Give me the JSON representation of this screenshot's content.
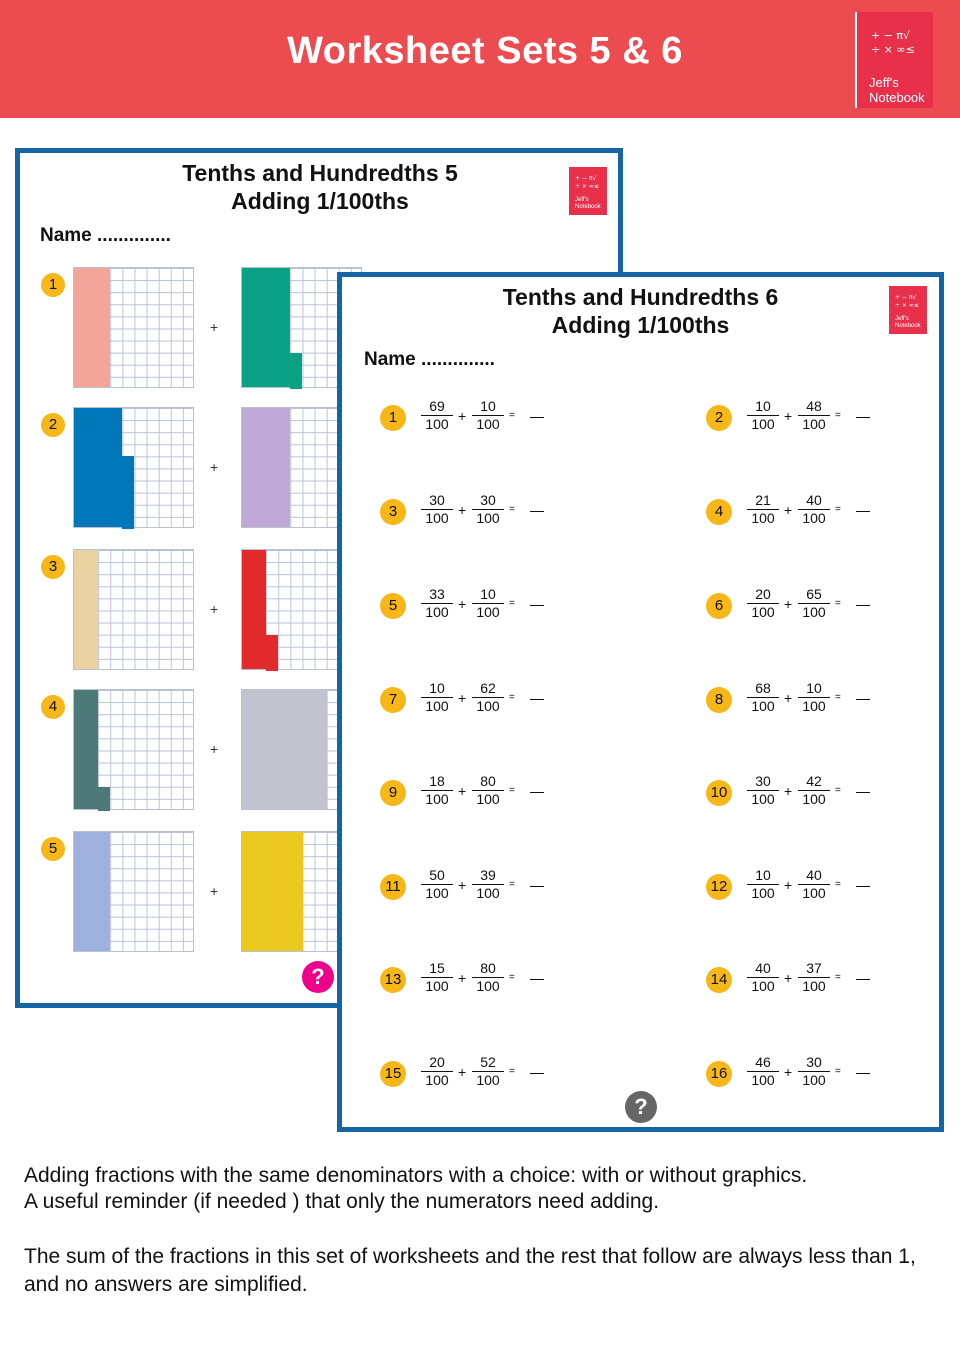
{
  "banner": {
    "title": "Worksheet Sets 5 & 6",
    "color": "#ec4b4f",
    "logo": {
      "symbols_line1": "+ −  π√",
      "symbols_line2": "÷ ×  ∞≤",
      "brand_line1": "Jeff's",
      "brand_line2": "Notebook"
    }
  },
  "sheet1": {
    "title_line1": "Tenths and Hundredths 5",
    "title_line2": "Adding 1/100ths",
    "name_label": "Name ..............",
    "plus": "+",
    "help_symbol": "?",
    "help_color": "#ec008c",
    "rows": [
      {
        "number": "1",
        "left": {
          "hundredths": 30,
          "color": "#f4a59a"
        },
        "right": {
          "hundredths": 43,
          "color": "#0aa184"
        }
      },
      {
        "number": "2",
        "left": {
          "hundredths": 46,
          "color": "#0077b8"
        },
        "right": {
          "hundredths": 40,
          "color": "#c0a8d6"
        }
      },
      {
        "number": "3",
        "left": {
          "hundredths": 20,
          "color": "#ead3a0"
        },
        "right": {
          "hundredths": 23,
          "color": "#e2292b"
        }
      },
      {
        "number": "4",
        "left": {
          "hundredths": 22,
          "color": "#4c7a78"
        },
        "right": {
          "hundredths": 70,
          "color": "#c2c3cf"
        }
      },
      {
        "number": "5",
        "left": {
          "hundredths": 30,
          "color": "#9eb0dc"
        },
        "right": {
          "hundredths": 50,
          "color": "#ebc81f"
        }
      }
    ]
  },
  "sheet2": {
    "title_line1": "Tenths and Hundredths 6",
    "title_line2": "Adding 1/100ths",
    "name_label": "Name ..............",
    "plus": "+",
    "equals": "=",
    "help_symbol": "?",
    "help_color": "#666666",
    "problems": [
      {
        "number": "1",
        "a": "69",
        "b": "10",
        "den": "100"
      },
      {
        "number": "2",
        "a": "10",
        "b": "48",
        "den": "100"
      },
      {
        "number": "3",
        "a": "30",
        "b": "30",
        "den": "100"
      },
      {
        "number": "4",
        "a": "21",
        "b": "40",
        "den": "100"
      },
      {
        "number": "5",
        "a": "33",
        "b": "10",
        "den": "100"
      },
      {
        "number": "6",
        "a": "20",
        "b": "65",
        "den": "100"
      },
      {
        "number": "7",
        "a": "10",
        "b": "62",
        "den": "100"
      },
      {
        "number": "8",
        "a": "68",
        "b": "10",
        "den": "100"
      },
      {
        "number": "9",
        "a": "18",
        "b": "80",
        "den": "100"
      },
      {
        "number": "10",
        "a": "30",
        "b": "42",
        "den": "100"
      },
      {
        "number": "11",
        "a": "50",
        "b": "39",
        "den": "100"
      },
      {
        "number": "12",
        "a": "10",
        "b": "40",
        "den": "100"
      },
      {
        "number": "13",
        "a": "15",
        "b": "80",
        "den": "100"
      },
      {
        "number": "14",
        "a": "40",
        "b": "37",
        "den": "100"
      },
      {
        "number": "15",
        "a": "20",
        "b": "52",
        "den": "100"
      },
      {
        "number": "16",
        "a": "46",
        "b": "30",
        "den": "100"
      }
    ]
  },
  "description": {
    "para1_line1": "Adding fractions with the same denominators with a choice:  with or without graphics.",
    "para1_line2": "A useful reminder (if needed ) that only the numerators need adding.",
    "para2": "The sum of the fractions in this set of worksheets and the rest that follow are always less than 1, and no answers are simplified."
  }
}
